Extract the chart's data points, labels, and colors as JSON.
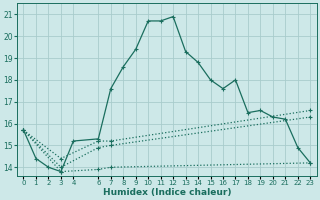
{
  "xlabel": "Humidex (Indice chaleur)",
  "bg_color": "#cde8e8",
  "grid_color": "#a8cccc",
  "line_color": "#1a6e5e",
  "xlim": [
    -0.5,
    23.5
  ],
  "ylim": [
    13.6,
    21.5
  ],
  "yticks": [
    14,
    15,
    16,
    17,
    18,
    19,
    20,
    21
  ],
  "xticks": [
    0,
    1,
    2,
    3,
    4,
    6,
    7,
    8,
    9,
    10,
    11,
    12,
    13,
    14,
    15,
    16,
    17,
    18,
    19,
    20,
    21,
    22,
    23
  ],
  "xtick_labels": [
    "0",
    "1",
    "2",
    "3",
    "4",
    "6",
    "7",
    "8",
    "9",
    "10",
    "11",
    "12",
    "13",
    "14",
    "15",
    "16",
    "17",
    "18",
    "19",
    "20",
    "21",
    "22",
    "23"
  ],
  "series1": [
    [
      0,
      15.7
    ],
    [
      1,
      14.4
    ],
    [
      2,
      14.0
    ],
    [
      3,
      13.8
    ],
    [
      4,
      15.2
    ],
    [
      6,
      15.3
    ],
    [
      7,
      17.6
    ],
    [
      8,
      18.6
    ],
    [
      9,
      19.4
    ],
    [
      10,
      20.7
    ],
    [
      11,
      20.7
    ],
    [
      12,
      20.9
    ],
    [
      13,
      19.3
    ],
    [
      14,
      18.8
    ],
    [
      15,
      18.0
    ],
    [
      16,
      17.6
    ],
    [
      17,
      18.0
    ],
    [
      18,
      16.5
    ],
    [
      19,
      16.6
    ],
    [
      20,
      16.3
    ],
    [
      21,
      16.2
    ],
    [
      22,
      14.9
    ],
    [
      23,
      14.2
    ]
  ],
  "series2": [
    [
      0,
      15.7
    ],
    [
      3,
      14.4
    ],
    [
      6,
      15.2
    ],
    [
      7,
      15.2
    ],
    [
      23,
      16.6
    ]
  ],
  "series3": [
    [
      0,
      15.7
    ],
    [
      3,
      14.0
    ],
    [
      6,
      14.9
    ],
    [
      7,
      15.0
    ],
    [
      23,
      16.3
    ]
  ],
  "series4": [
    [
      0,
      15.7
    ],
    [
      3,
      13.8
    ],
    [
      6,
      13.9
    ],
    [
      7,
      14.0
    ],
    [
      23,
      14.2
    ]
  ]
}
